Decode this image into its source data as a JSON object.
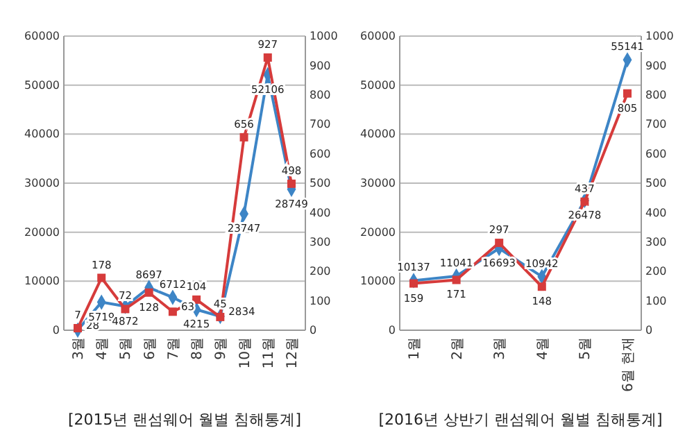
{
  "chart_data": [
    {
      "type": "line",
      "title": "[2015년 랜섬웨어 월별 침해통계]",
      "categories": [
        "3월",
        "4월",
        "5월",
        "6월",
        "7월",
        "8월",
        "9월",
        "10월",
        "11월",
        "12월"
      ],
      "series": [
        {
          "color": "#3d85c6",
          "marker": "diamond",
          "values": [
            28,
            5719,
            4872,
            8697,
            6712,
            4215,
            2834,
            23747,
            52106,
            28749
          ]
        },
        {
          "color": "#d63b3b",
          "marker": "square",
          "axis": "y2",
          "values": [
            7,
            178,
            72,
            128,
            63,
            104,
            45,
            656,
            927,
            498
          ]
        }
      ],
      "ylim": [
        0,
        60000
      ],
      "yticks": [
        0,
        10000,
        20000,
        30000,
        40000,
        50000,
        60000
      ],
      "y2lim": [
        0,
        1000
      ],
      "y2ticks": [
        0,
        100,
        200,
        300,
        400,
        500,
        600,
        700,
        800,
        900,
        1000
      ],
      "grid": "y",
      "data_labels": true,
      "legend": false
    },
    {
      "type": "line",
      "title": "[2016년 상반기 랜섬웨어 월별 침해통계]",
      "categories": [
        "1월",
        "2월",
        "3월",
        "4월",
        "5월",
        "6월 현재"
      ],
      "series": [
        {
          "color": "#3d85c6",
          "marker": "diamond",
          "values": [
            10137,
            11041,
            16693,
            10942,
            26478,
            55141
          ]
        },
        {
          "color": "#d63b3b",
          "marker": "square",
          "axis": "y2",
          "values": [
            159,
            171,
            297,
            148,
            437,
            805
          ]
        }
      ],
      "ylim": [
        0,
        60000
      ],
      "yticks": [
        0,
        10000,
        20000,
        30000,
        40000,
        50000,
        60000
      ],
      "y2lim": [
        0,
        1000
      ],
      "y2ticks": [
        0,
        100,
        200,
        300,
        400,
        500,
        600,
        700,
        800,
        900,
        1000
      ],
      "grid": "y",
      "data_labels": true,
      "legend": false
    }
  ]
}
